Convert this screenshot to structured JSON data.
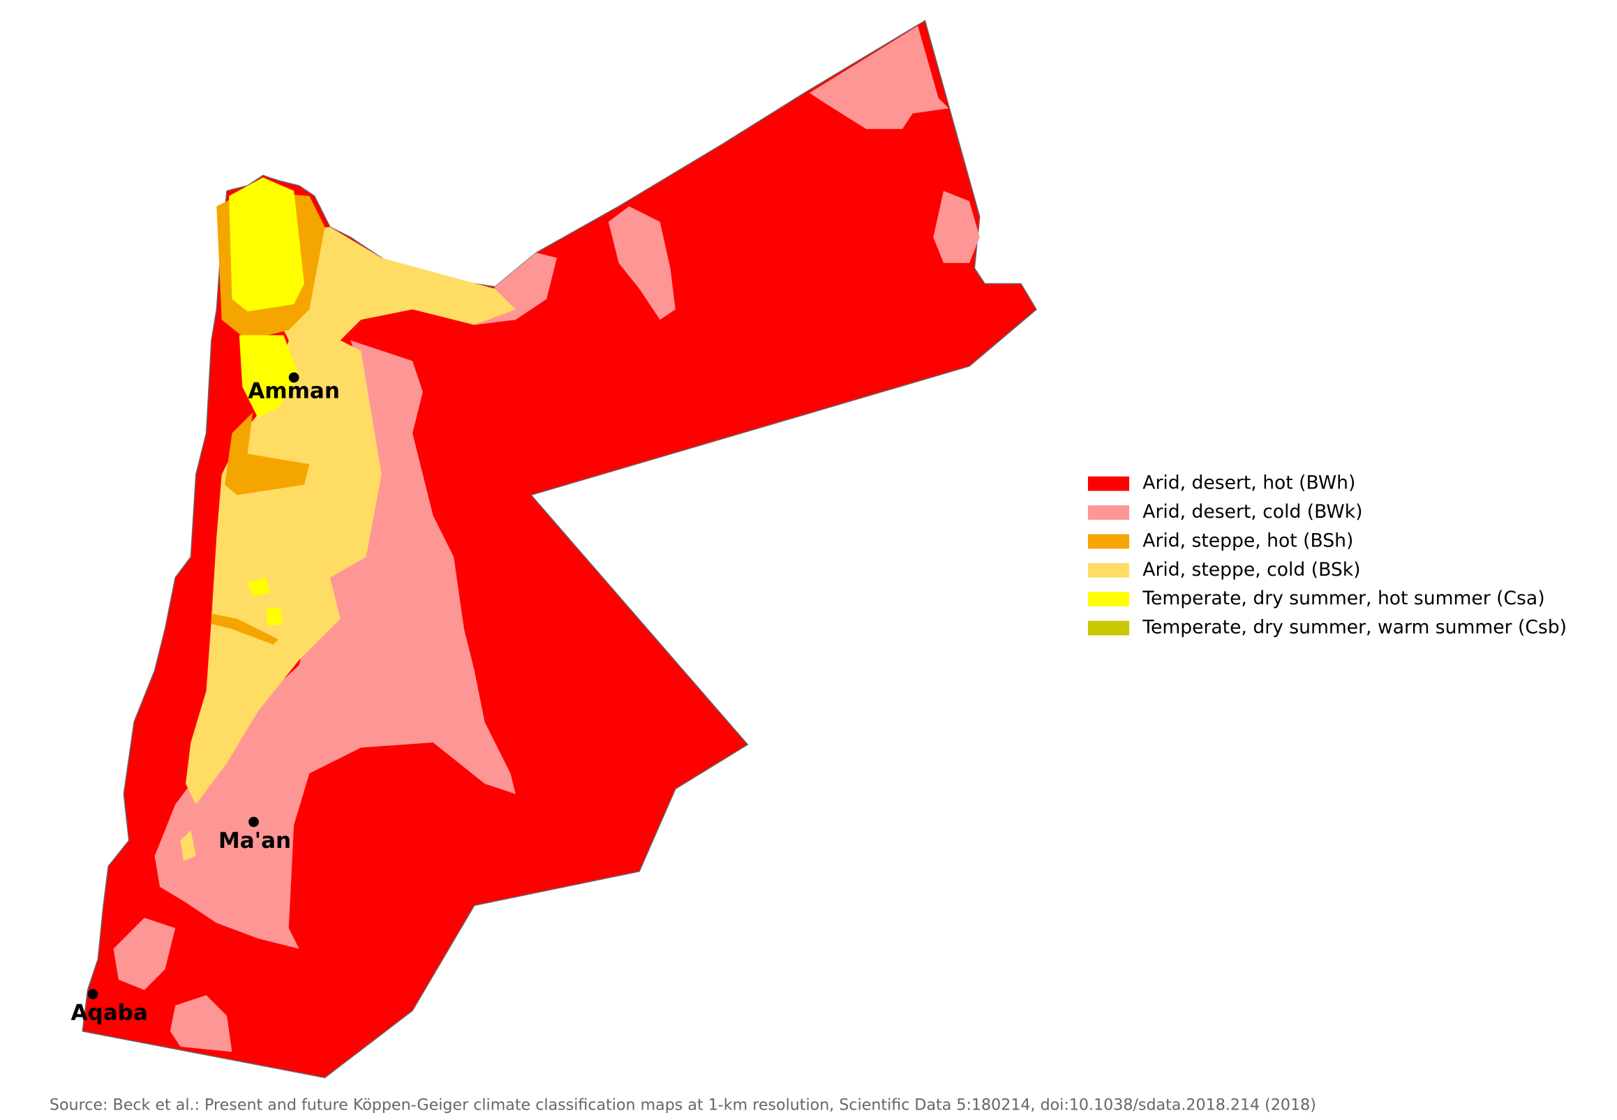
{
  "map": {
    "cities": [
      {
        "name": "Amman"
      },
      {
        "name": "Ma'an"
      },
      {
        "name": "Aqaba"
      }
    ],
    "legend": [
      {
        "label": "Arid, desert, hot (BWh)",
        "color": "#ff0000"
      },
      {
        "label": "Arid, desert, cold (BWk)",
        "color": "#ff9696"
      },
      {
        "label": "Arid, steppe, hot (BSh)",
        "color": "#f5a500"
      },
      {
        "label": "Arid, steppe, cold (BSk)",
        "color": "#ffdc64"
      },
      {
        "label": "Temperate, dry summer, hot summer (Csa)",
        "color": "#ffff00"
      },
      {
        "label": "Temperate, dry summer, warm summer (Csb)",
        "color": "#c8c800"
      }
    ],
    "source": "Source: Beck et al.: Present and future Köppen-Geiger climate classification maps at 1-km resolution, Scientific Data 5:180214, doi:10.1038/sdata.2018.214 (2018)"
  }
}
